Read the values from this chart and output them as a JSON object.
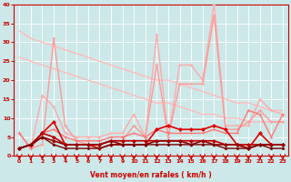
{
  "xlabel": "Vent moyen/en rafales ( km/h )",
  "xlim": [
    -0.5,
    23.5
  ],
  "ylim": [
    0,
    40
  ],
  "yticks": [
    0,
    5,
    10,
    15,
    20,
    25,
    30,
    35,
    40
  ],
  "xticks": [
    0,
    1,
    2,
    3,
    4,
    5,
    6,
    7,
    8,
    9,
    10,
    11,
    12,
    13,
    14,
    15,
    16,
    17,
    18,
    19,
    20,
    21,
    22,
    23
  ],
  "bg_color": "#cce8e8",
  "grid_color": "#b0d8d8",
  "series": [
    {
      "y": [
        33,
        31,
        30,
        29,
        28,
        27,
        26,
        25,
        24,
        23,
        22,
        21,
        20,
        20,
        19,
        18,
        17,
        16,
        15,
        14,
        14,
        13,
        12,
        12
      ],
      "color": "#ffbbbb",
      "lw": 1.0,
      "marker": null,
      "ms": 0
    },
    {
      "y": [
        26,
        25,
        24,
        23,
        22,
        21,
        20,
        19,
        18,
        17,
        16,
        15,
        14,
        14,
        13,
        12,
        11,
        11,
        10,
        10,
        9,
        9,
        9,
        9
      ],
      "color": "#ffbbbb",
      "lw": 1.0,
      "marker": null,
      "ms": 0
    },
    {
      "y": [
        6,
        2,
        16,
        13,
        6,
        5,
        5,
        5,
        6,
        6,
        11,
        5,
        32,
        5,
        24,
        24,
        20,
        40,
        8,
        8,
        8,
        15,
        12,
        11
      ],
      "color": "#ffaaaa",
      "lw": 1.0,
      "marker": "+",
      "ms": 3.5
    },
    {
      "y": [
        6,
        2,
        3,
        31,
        8,
        4,
        3,
        3,
        4,
        4,
        8,
        5,
        24,
        5,
        19,
        19,
        19,
        37,
        7,
        7,
        9,
        12,
        9,
        9
      ],
      "color": "#ff9999",
      "lw": 1.0,
      "marker": "+",
      "ms": 3.5
    },
    {
      "y": [
        6,
        2,
        6,
        7,
        5,
        4,
        4,
        4,
        5,
        5,
        6,
        5,
        7,
        6,
        6,
        6,
        6,
        7,
        6,
        6,
        12,
        11,
        5,
        11
      ],
      "color": "#ff7777",
      "lw": 1.0,
      "marker": "+",
      "ms": 3.0
    },
    {
      "y": [
        2,
        3,
        6,
        9,
        3,
        3,
        3,
        2,
        3,
        3,
        3,
        3,
        7,
        8,
        7,
        7,
        7,
        8,
        7,
        3,
        2,
        6,
        3,
        3
      ],
      "color": "#dd0000",
      "lw": 1.2,
      "marker": "D",
      "ms": 2.0
    },
    {
      "y": [
        2,
        3,
        6,
        5,
        3,
        3,
        3,
        3,
        4,
        4,
        4,
        4,
        4,
        4,
        4,
        4,
        4,
        4,
        3,
        3,
        3,
        3,
        3,
        3
      ],
      "color": "#bb0000",
      "lw": 1.2,
      "marker": "D",
      "ms": 2.0
    },
    {
      "y": [
        2,
        3,
        5,
        4,
        3,
        3,
        3,
        3,
        4,
        3,
        3,
        3,
        4,
        4,
        4,
        3,
        4,
        3,
        3,
        3,
        2,
        3,
        3,
        3
      ],
      "color": "#990000",
      "lw": 1.2,
      "marker": "D",
      "ms": 1.8
    },
    {
      "y": [
        2,
        3,
        5,
        3,
        2,
        2,
        2,
        2,
        3,
        3,
        3,
        3,
        3,
        3,
        3,
        3,
        3,
        3,
        2,
        2,
        2,
        3,
        2,
        2
      ],
      "color": "#770000",
      "lw": 1.0,
      "marker": "D",
      "ms": 1.5
    }
  ],
  "arrow_color": "#cc0000"
}
